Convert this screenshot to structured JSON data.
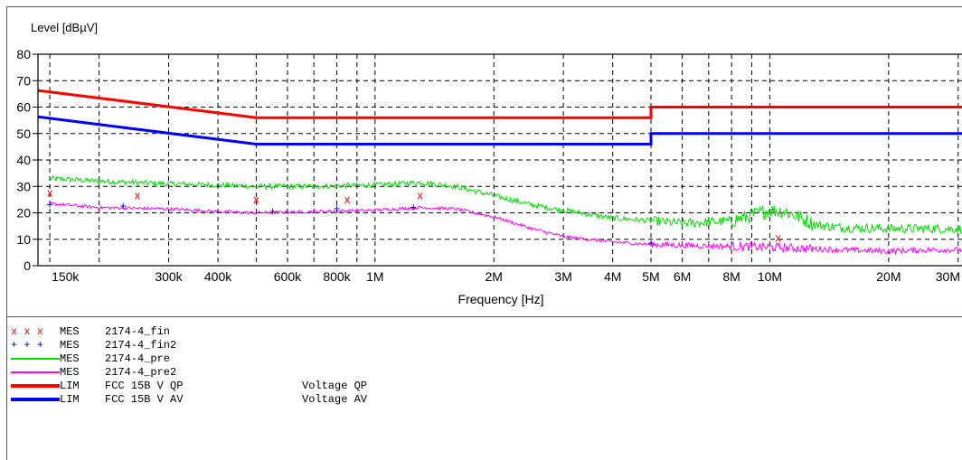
{
  "chart_data": {
    "type": "line",
    "ylabel": "Level [dBµV]",
    "xlabel": "Frequency [Hz]",
    "x_scale": "log",
    "xlim": [
      140000,
      32000000
    ],
    "ylim": [
      0,
      80
    ],
    "grid": true,
    "y_ticks": [
      0,
      10,
      20,
      30,
      40,
      50,
      60,
      70,
      80
    ],
    "x_ticks": [
      {
        "value": 150000,
        "label": "150k"
      },
      {
        "value": 300000,
        "label": "300k"
      },
      {
        "value": 400000,
        "label": "400k"
      },
      {
        "value": 600000,
        "label": "600k"
      },
      {
        "value": 800000,
        "label": "800k"
      },
      {
        "value": 1000000,
        "label": "1M"
      },
      {
        "value": 2000000,
        "label": "2M"
      },
      {
        "value": 3000000,
        "label": "3M"
      },
      {
        "value": 4000000,
        "label": "4M"
      },
      {
        "value": 5000000,
        "label": "5M"
      },
      {
        "value": 6000000,
        "label": "6M"
      },
      {
        "value": 8000000,
        "label": "8M"
      },
      {
        "value": 10000000,
        "label": "10M"
      },
      {
        "value": 20000000,
        "label": "20M"
      },
      {
        "value": 30000000,
        "label": "30M"
      }
    ],
    "x_gridlines": [
      150000,
      200000,
      300000,
      400000,
      500000,
      600000,
      700000,
      800000,
      900000,
      1000000,
      2000000,
      3000000,
      4000000,
      5000000,
      6000000,
      7000000,
      8000000,
      9000000,
      10000000,
      20000000,
      30000000
    ],
    "series": [
      {
        "legend_kind": "MES",
        "name": "2174-4_fin",
        "color": "#ff0000",
        "style": "x-markers",
        "points": [
          [
            150000,
            27.5
          ],
          [
            250000,
            26.5
          ],
          [
            500000,
            25
          ],
          [
            850000,
            25
          ],
          [
            1300000,
            26.5
          ],
          [
            10500000,
            10.5
          ]
        ]
      },
      {
        "legend_kind": "MES",
        "name": "2174-4_fin2",
        "color": "#0000cc",
        "style": "plus-markers",
        "points": [
          [
            150000,
            23
          ],
          [
            230000,
            22.5
          ],
          [
            550000,
            20.5
          ],
          [
            800000,
            21.5
          ],
          [
            1250000,
            22
          ],
          [
            5000000,
            8.5
          ]
        ]
      },
      {
        "legend_kind": "MES",
        "name": "2174-4_pre",
        "color": "#00dd00",
        "style": "noisy-line",
        "points": [
          [
            150000,
            33
          ],
          [
            200000,
            32
          ],
          [
            300000,
            31
          ],
          [
            400000,
            30.5
          ],
          [
            500000,
            30
          ],
          [
            700000,
            30
          ],
          [
            1000000,
            30.5
          ],
          [
            1300000,
            31.5
          ],
          [
            1600000,
            30
          ],
          [
            2000000,
            26.5
          ],
          [
            2500000,
            23
          ],
          [
            3000000,
            21
          ],
          [
            4000000,
            18
          ],
          [
            5000000,
            17
          ],
          [
            6000000,
            16
          ],
          [
            8000000,
            17
          ],
          [
            9000000,
            19
          ],
          [
            10000000,
            21
          ],
          [
            11000000,
            20.5
          ],
          [
            12000000,
            18
          ],
          [
            13000000,
            15.5
          ],
          [
            15000000,
            14.5
          ],
          [
            20000000,
            14
          ],
          [
            25000000,
            14
          ],
          [
            32000000,
            14
          ]
        ]
      },
      {
        "legend_kind": "MES",
        "name": "2174-4_pre2",
        "color": "#ff00ff",
        "style": "noisy-line",
        "points": [
          [
            150000,
            23.5
          ],
          [
            200000,
            22
          ],
          [
            300000,
            21.5
          ],
          [
            400000,
            20.5
          ],
          [
            500000,
            20
          ],
          [
            700000,
            20.5
          ],
          [
            1000000,
            21
          ],
          [
            1300000,
            22
          ],
          [
            1600000,
            21.5
          ],
          [
            2000000,
            18.5
          ],
          [
            2500000,
            14
          ],
          [
            3000000,
            11
          ],
          [
            4000000,
            9
          ],
          [
            5000000,
            8
          ],
          [
            7000000,
            7.5
          ],
          [
            10000000,
            7
          ],
          [
            15000000,
            6
          ],
          [
            20000000,
            5.5
          ],
          [
            25000000,
            6
          ],
          [
            32000000,
            6
          ]
        ]
      },
      {
        "legend_kind": "LIM",
        "name": "FCC 15B V QP",
        "description": "Voltage QP",
        "color": "#ff0000",
        "style": "limit",
        "points": [
          [
            140000,
            66.3
          ],
          [
            500000,
            56
          ],
          [
            5000000,
            56
          ],
          [
            5000000,
            60
          ],
          [
            32000000,
            60
          ]
        ]
      },
      {
        "legend_kind": "LIM",
        "name": "FCC 15B V AV",
        "description": "Voltage AV",
        "color": "#0000ff",
        "style": "limit",
        "points": [
          [
            140000,
            56.3
          ],
          [
            500000,
            46
          ],
          [
            5000000,
            46
          ],
          [
            5000000,
            50
          ],
          [
            32000000,
            50
          ]
        ]
      }
    ]
  }
}
